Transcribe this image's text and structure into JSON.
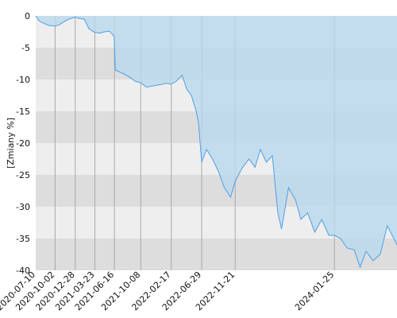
{
  "chart_data": {
    "type": "area",
    "title": "",
    "xlabel": "",
    "ylabel": "[Zmiany %]",
    "ylim": [
      -40,
      0
    ],
    "yticks": [
      0,
      -5,
      -10,
      -15,
      -20,
      -25,
      -30,
      -35,
      -40
    ],
    "grid": true,
    "legend": "none",
    "xlim": [
      "2020-07-10",
      "2024-10-22"
    ],
    "xtick_labels": [
      "2020-07-10",
      "2020-10-02",
      "2020-12-28",
      "2021-03-23",
      "2021-06-16",
      "2021-10-08",
      "2022-02-17",
      "2022-06-29",
      "2022-11-21",
      "2024-01-25"
    ],
    "series": [
      {
        "points": [
          [
            "2020-07-10",
            0
          ],
          [
            "2020-07-25",
            -0.8
          ],
          [
            "2020-08-15",
            -1.2
          ],
          [
            "2020-09-05",
            -1.5
          ],
          [
            "2020-10-02",
            -1.6
          ],
          [
            "2020-10-20",
            -1.4
          ],
          [
            "2020-11-10",
            -0.9
          ],
          [
            "2020-12-01",
            -0.5
          ],
          [
            "2020-12-28",
            -0.2
          ],
          [
            "2021-01-15",
            -0.4
          ],
          [
            "2021-02-05",
            -0.5
          ],
          [
            "2021-02-25",
            -2.0
          ],
          [
            "2021-03-23",
            -2.6
          ],
          [
            "2021-04-15",
            -2.7
          ],
          [
            "2021-05-05",
            -2.5
          ],
          [
            "2021-05-25",
            -2.4
          ],
          [
            "2021-06-10",
            -3.0
          ],
          [
            "2021-06-15",
            -3.3
          ],
          [
            "2021-06-20",
            -8.5
          ],
          [
            "2021-07-20",
            -9.0
          ],
          [
            "2021-08-20",
            -9.6
          ],
          [
            "2021-09-15",
            -10.3
          ],
          [
            "2021-10-08",
            -10.5
          ],
          [
            "2021-11-01",
            -11.2
          ],
          [
            "2021-12-01",
            -11.0
          ],
          [
            "2022-01-01",
            -10.8
          ],
          [
            "2022-01-25",
            -10.6
          ],
          [
            "2022-02-17",
            -10.7
          ],
          [
            "2022-03-10",
            -10.3
          ],
          [
            "2022-04-05",
            -9.3
          ],
          [
            "2022-04-25",
            -11.5
          ],
          [
            "2022-05-15",
            -12.5
          ],
          [
            "2022-06-05",
            -15.0
          ],
          [
            "2022-06-15",
            -16.8
          ],
          [
            "2022-06-29",
            -23.0
          ],
          [
            "2022-07-20",
            -21.0
          ],
          [
            "2022-08-15",
            -22.5
          ],
          [
            "2022-09-10",
            -24.5
          ],
          [
            "2022-10-05",
            -27.0
          ],
          [
            "2022-11-01",
            -28.5
          ],
          [
            "2022-11-21",
            -26.0
          ],
          [
            "2022-12-20",
            -24.0
          ],
          [
            "2023-01-20",
            -22.5
          ],
          [
            "2023-02-15",
            -23.8
          ],
          [
            "2023-03-10",
            -21.0
          ],
          [
            "2023-04-05",
            -23.0
          ],
          [
            "2023-05-01",
            -22.0
          ],
          [
            "2023-05-25",
            -31.0
          ],
          [
            "2023-06-10",
            -33.5
          ],
          [
            "2023-07-10",
            -27.0
          ],
          [
            "2023-08-10",
            -29.0
          ],
          [
            "2023-09-01",
            -32.0
          ],
          [
            "2023-10-01",
            -31.0
          ],
          [
            "2023-11-01",
            -34.0
          ],
          [
            "2023-12-01",
            -32.0
          ],
          [
            "2024-01-01",
            -34.5
          ],
          [
            "2024-01-25",
            -34.5
          ],
          [
            "2024-02-20",
            -35.0
          ],
          [
            "2024-03-20",
            -36.5
          ],
          [
            "2024-04-20",
            -36.8
          ],
          [
            "2024-05-15",
            -39.5
          ],
          [
            "2024-06-10",
            -37.0
          ],
          [
            "2024-07-10",
            -38.5
          ],
          [
            "2024-08-10",
            -37.5
          ],
          [
            "2024-09-10",
            -33.0
          ],
          [
            "2024-10-22",
            -36.0
          ]
        ]
      }
    ],
    "colors": {
      "line": "#4f9ee8",
      "area": "#b9d9ec",
      "band_dark": "#dddddd",
      "band_light": "#eeeeee",
      "grid_v": "#a9a9a9"
    }
  }
}
